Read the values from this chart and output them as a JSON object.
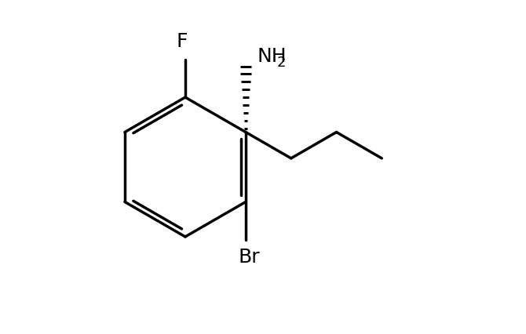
{
  "background_color": "#ffffff",
  "line_color": "#000000",
  "line_width": 2.5,
  "font_size_label": 18,
  "font_size_subscript": 13,
  "figsize": [
    6.7,
    4.26
  ],
  "dpi": 100,
  "xlim": [
    -0.02,
    1.05
  ],
  "ylim": [
    -0.02,
    1.02
  ]
}
